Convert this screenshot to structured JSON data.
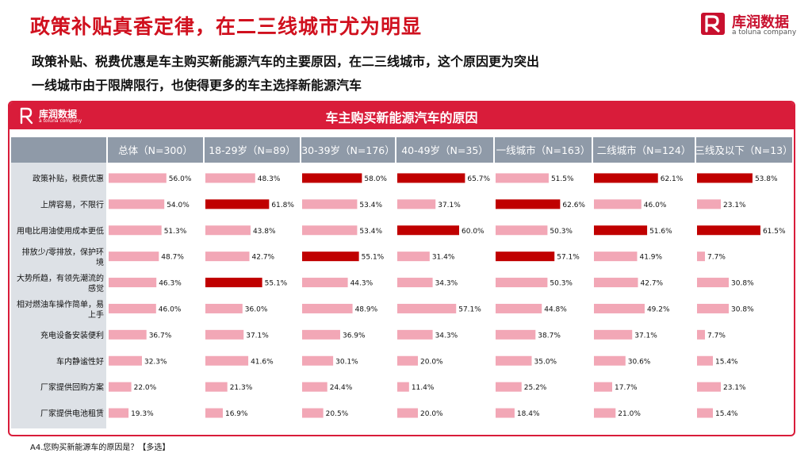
{
  "header": {
    "title": "政策补贴真香定律，在二三线城市尤为明显",
    "subtitle_line1": "政策补贴、税费优惠是车主购买新能源汽车的主要原因，在二三线城市，这个原因更为突出",
    "subtitle_line2": "一线城市由于限牌限行，也使得更多的车主选择新能源汽车"
  },
  "brand": {
    "name": "库润数据",
    "tagline": "a toluna company",
    "color": "#c8102e"
  },
  "panel": {
    "title": "车主购买新能源汽车的原因",
    "logo_name": "库润数据",
    "logo_tagline": "a toluna company"
  },
  "footnote": "A4.您购买新能源车的原因是？【多选】",
  "colors": {
    "header_red": "#d91c3a",
    "highlight_bar": "#c00000",
    "normal_bar": "#f2a7b6",
    "column_header_bg": "#8f9aa8",
    "stripe_bg": "#dde1e6"
  },
  "chart_data": {
    "type": "bar",
    "orientation": "horizontal",
    "unit": "%",
    "categories": [
      "政策补贴，税费优惠",
      "上牌容易，不限行",
      "用电比用油使用成本更低",
      "排放少/零排放，保护环境",
      "大势所趋，有领先潮流的感觉",
      "相对燃油车操作简单，易上手",
      "充电设备安装便利",
      "车内静谧性好",
      "厂家提供回购方案",
      "厂家提供电池租赁"
    ],
    "category_lines": [
      [
        "政策补贴，税费优惠"
      ],
      [
        "上牌容易，不限行"
      ],
      [
        "用电比用油使用成本更低"
      ],
      [
        "排放少/零排放，保护环",
        "境"
      ],
      [
        "大势所趋，有领先潮流的",
        "感觉"
      ],
      [
        "相对燃油车操作简单，易",
        "上手"
      ],
      [
        "充电设备安装便利"
      ],
      [
        "车内静谧性好"
      ],
      [
        "厂家提供回购方案"
      ],
      [
        "厂家提供电池租赁"
      ]
    ],
    "series": [
      {
        "name": "总体（N=300）",
        "values": [
          56.0,
          54.0,
          51.3,
          48.7,
          46.3,
          46.0,
          36.7,
          32.3,
          22.0,
          19.3
        ],
        "highlight": []
      },
      {
        "name": "18-29岁（N=89）",
        "values": [
          48.3,
          61.8,
          43.8,
          42.7,
          55.1,
          36.0,
          37.1,
          41.6,
          21.3,
          16.9
        ],
        "highlight": [
          1,
          4
        ]
      },
      {
        "name": "30-39岁（N=176）",
        "values": [
          58.0,
          53.4,
          53.4,
          55.1,
          44.3,
          48.9,
          36.9,
          30.1,
          24.4,
          20.5
        ],
        "highlight": [
          0,
          3
        ]
      },
      {
        "name": "40-49岁（N=35）",
        "values": [
          65.7,
          37.1,
          60.0,
          31.4,
          34.3,
          57.1,
          34.3,
          20.0,
          11.4,
          20.0
        ],
        "highlight": [
          0,
          2
        ]
      },
      {
        "name": "一线城市（N=163）",
        "values": [
          51.5,
          62.6,
          50.3,
          57.1,
          50.3,
          44.8,
          38.7,
          35.0,
          25.2,
          18.4
        ],
        "highlight": [
          1,
          3
        ]
      },
      {
        "name": "二线城市（N=124）",
        "values": [
          62.1,
          46.0,
          51.6,
          41.9,
          42.7,
          49.2,
          37.1,
          30.6,
          17.7,
          21.0
        ],
        "highlight": [
          0,
          2
        ]
      },
      {
        "name": "三线及以下（N=13）",
        "values": [
          53.8,
          23.1,
          61.5,
          7.7,
          30.8,
          30.8,
          7.7,
          15.4,
          23.1,
          15.4
        ],
        "highlight": [
          0,
          2
        ]
      }
    ]
  }
}
